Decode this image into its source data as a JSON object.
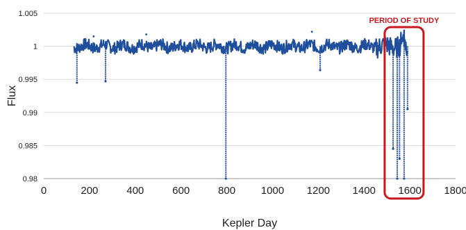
{
  "chart_data": {
    "type": "scatter",
    "title": "",
    "xlabel": "Kepler Day",
    "ylabel": "Flux",
    "xlim": [
      0,
      1800
    ],
    "ylim": [
      0.98,
      1.005
    ],
    "x_ticks": [
      0,
      200,
      400,
      600,
      800,
      1000,
      1200,
      1400,
      1600,
      1800
    ],
    "y_ticks": [
      0.98,
      0.985,
      0.99,
      0.995,
      1,
      1.005
    ],
    "y_tick_labels": [
      "0.98",
      "0.985",
      "0.99",
      "0.995",
      "1",
      "1.005"
    ],
    "grid": "horizontal",
    "series": [
      {
        "color": "#1f4e9c",
        "x_range": [
          131,
          1591
        ],
        "baseline": 1.0,
        "dips": [
          {
            "x": 145,
            "y": 0.9945
          },
          {
            "x": 270,
            "y": 0.9947
          },
          {
            "x": 796,
            "y": 0.98
          },
          {
            "x": 1208,
            "y": 0.9964
          },
          {
            "x": 1527,
            "y": 0.9845
          },
          {
            "x": 1545,
            "y": 0.98
          },
          {
            "x": 1555,
            "y": 0.983
          },
          {
            "x": 1575,
            "y": 0.98
          },
          {
            "x": 1590,
            "y": 0.9905
          }
        ],
        "outliers": [
          {
            "x": 218,
            "y": 1.0015
          },
          {
            "x": 448,
            "y": 1.0018
          },
          {
            "x": 1172,
            "y": 1.0022
          }
        ],
        "peak": {
          "x": 1575,
          "y": 1.0025
        }
      }
    ],
    "annotation": {
      "label": "PERIOD OF STUDY",
      "color": "#c8161d",
      "x_range": [
        1490,
        1660
      ],
      "y_range": [
        0.9795,
        1.005
      ]
    }
  }
}
